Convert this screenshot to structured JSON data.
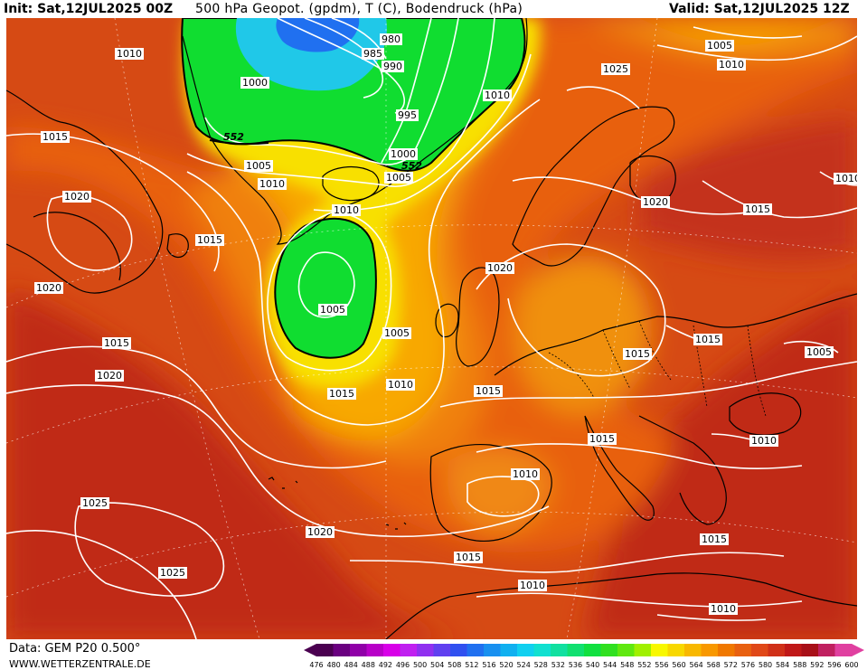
{
  "header": {
    "init": "Init: Sat,12JUL2025 00Z",
    "title": "500 hPa Geopot. (gpdm), T (C), Bodendruck (hPa)",
    "valid": "Valid: Sat,12JUL2025 12Z"
  },
  "footer": {
    "data_source": "Data: GEM P20 0.500°",
    "website": "WWW.WETTERZENTRALE.DE"
  },
  "colorbar": {
    "ticks": [
      "476",
      "480",
      "484",
      "488",
      "492",
      "496",
      "500",
      "504",
      "508",
      "512",
      "516",
      "520",
      "524",
      "528",
      "532",
      "536",
      "540",
      "544",
      "548",
      "552",
      "556",
      "560",
      "564",
      "568",
      "572",
      "576",
      "580",
      "584",
      "588",
      "592",
      "596",
      "600"
    ],
    "colors": [
      "#4a0050",
      "#6a0080",
      "#9000a8",
      "#b800c8",
      "#d800e8",
      "#c020f0",
      "#9030f0",
      "#6040f0",
      "#3050f0",
      "#2070f0",
      "#1890f0",
      "#10b0f0",
      "#10d0f0",
      "#10e0d0",
      "#10e0a0",
      "#10e070",
      "#10e040",
      "#30e020",
      "#60e810",
      "#a0f000",
      "#f8f800",
      "#f8d800",
      "#f8b800",
      "#f89800",
      "#f07800",
      "#e86010",
      "#e04818",
      "#d03018",
      "#c01818",
      "#a81018",
      "#c02060",
      "#e040a0"
    ]
  },
  "map_colors": {
    "ocean_background": "#d64a14",
    "deep_red": "#c02a18",
    "orange_red": "#e05a10",
    "orange": "#f08010",
    "light_orange": "#f8a000",
    "yellow": "#f8e800",
    "green": "#10dd30",
    "cyan": "#20c8e8",
    "blue": "#2060f0",
    "isobar": "#ffffff",
    "coast": "#000000"
  },
  "isobar_labels": [
    {
      "name": "isobar-label-980",
      "text": "980"
    },
    {
      "name": "isobar-label-985",
      "text": "985"
    },
    {
      "name": "isobar-label-990",
      "text": "990"
    },
    {
      "name": "isobar-label-995",
      "text": "995"
    },
    {
      "name": "isobar-label-1000-greenland",
      "text": "1000"
    },
    {
      "name": "isobar-label-1000-iceland",
      "text": "1000"
    },
    {
      "name": "isobar-label-1005-atlantic",
      "text": "1005"
    },
    {
      "name": "isobar-label-1005-canada",
      "text": "1005"
    },
    {
      "name": "isobar-label-1005-east",
      "text": "1005"
    },
    {
      "name": "isobar-label-1005-low",
      "text": "1005"
    },
    {
      "name": "isobar-label-1005-ne",
      "text": "1005"
    },
    {
      "name": "isobar-label-1005-south-iceland",
      "text": "1005"
    },
    {
      "name": "isobar-label-1010-nw",
      "text": "1010"
    },
    {
      "name": "isobar-label-1010-canada",
      "text": "1010"
    },
    {
      "name": "isobar-label-1010-iceland",
      "text": "1010"
    },
    {
      "name": "isobar-label-1010-low",
      "text": "1010"
    },
    {
      "name": "isobar-label-1010-mid",
      "text": "1010"
    },
    {
      "name": "isobar-label-1010-ne",
      "text": "1010"
    },
    {
      "name": "isobar-label-1010-east",
      "text": "1010"
    },
    {
      "name": "isobar-label-1010-iberia",
      "text": "1010"
    },
    {
      "name": "isobar-label-1010-africa",
      "text": "1010"
    },
    {
      "name": "isobar-label-1010-se",
      "text": "1010"
    },
    {
      "name": "isobar-label-1010-balkan",
      "text": "1010"
    },
    {
      "name": "isobar-label-1015-west",
      "text": "1015"
    },
    {
      "name": "isobar-label-1015-labrador",
      "text": "1015"
    },
    {
      "name": "isobar-label-1015-sw",
      "text": "1015"
    },
    {
      "name": "isobar-label-1015-mid",
      "text": "1015"
    },
    {
      "name": "isobar-label-1015-britain",
      "text": "1015"
    },
    {
      "name": "isobar-label-1015-central",
      "text": "1015"
    },
    {
      "name": "isobar-label-1015-ukraine",
      "text": "1015"
    },
    {
      "name": "isobar-label-1015-russia",
      "text": "1015"
    },
    {
      "name": "isobar-label-1015-med",
      "text": "1015"
    },
    {
      "name": "isobar-label-1015-africa",
      "text": "1015"
    },
    {
      "name": "isobar-label-1015-se",
      "text": "1015"
    },
    {
      "name": "isobar-label-1020-west",
      "text": "1020"
    },
    {
      "name": "isobar-label-1020-sw",
      "text": "1020"
    },
    {
      "name": "isobar-label-1020-lab",
      "text": "1020"
    },
    {
      "name": "isobar-label-1020-scand",
      "text": "1020"
    },
    {
      "name": "isobar-label-1020-north-sea",
      "text": "1020"
    },
    {
      "name": "isobar-label-1020-azores",
      "text": "1020"
    },
    {
      "name": "isobar-label-1025-scand",
      "text": "1025"
    },
    {
      "name": "isobar-label-1025-azores",
      "text": "1025"
    },
    {
      "name": "isobar-label-1025-south",
      "text": "1025"
    }
  ],
  "geopotential_labels": [
    {
      "name": "geopotential-label-552-greenland",
      "text": "552"
    },
    {
      "name": "geopotential-label-552-iceland",
      "text": "552"
    }
  ]
}
